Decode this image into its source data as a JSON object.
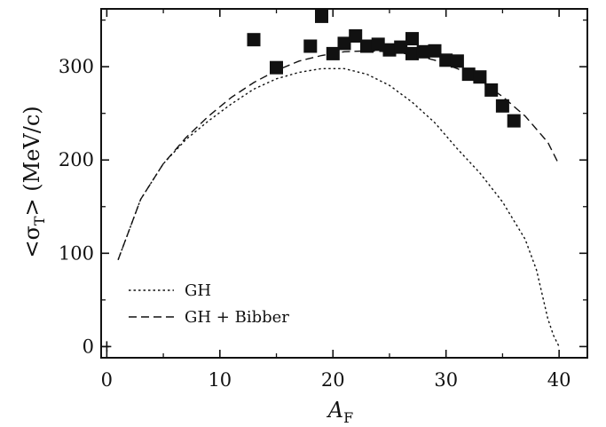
{
  "chart_data": {
    "type": "scatter",
    "title": "",
    "xlabel": {
      "main": "A",
      "sub": "F"
    },
    "ylabel": {
      "pre": "<σ",
      "sub": "T",
      "post": "> (MeV/c)"
    },
    "xlim": [
      -0.5,
      42.5
    ],
    "ylim": [
      -12,
      362
    ],
    "xticks": [
      0,
      10,
      20,
      30,
      40
    ],
    "yticks": [
      0,
      100,
      200,
      300
    ],
    "grid": false,
    "legend_position": "bottom-left",
    "legend": [
      {
        "label": "GH",
        "style": "dotted"
      },
      {
        "label": "GH + Bibber",
        "style": "dashed"
      }
    ],
    "series": [
      {
        "name": "GH",
        "kind": "line",
        "style": "dotted",
        "x": [
          1,
          3,
          5,
          7,
          9,
          11,
          13,
          15,
          17,
          19,
          20,
          21,
          23,
          25,
          27,
          29,
          31,
          33,
          35,
          37,
          38,
          39,
          39.5,
          40
        ],
        "y": [
          93,
          158,
          196,
          222,
          242,
          260,
          276,
          287,
          294,
          298,
          298,
          298,
          292,
          280,
          262,
          240,
          212,
          186,
          155,
          115,
          82,
          30,
          12,
          0
        ]
      },
      {
        "name": "GH + Bibber",
        "kind": "line",
        "style": "dashed",
        "x": [
          1,
          3,
          5,
          7,
          9,
          11,
          13,
          15,
          17,
          19,
          21,
          23,
          25,
          27,
          29,
          31,
          33,
          35,
          37,
          39,
          40
        ],
        "y": [
          93,
          158,
          196,
          224,
          247,
          267,
          283,
          296,
          306,
          312,
          316,
          317,
          316,
          313,
          307,
          298,
          285,
          268,
          247,
          219,
          195
        ]
      },
      {
        "kind": "scatter",
        "marker": "square",
        "x": [
          13,
          15,
          18,
          19,
          20,
          21,
          22,
          23,
          24,
          25,
          26,
          27,
          27,
          28,
          29,
          30,
          31,
          32,
          33,
          34,
          35,
          36
        ],
        "y": [
          329,
          299,
          322,
          354,
          314,
          325,
          333,
          322,
          324,
          318,
          321,
          330,
          314,
          316,
          317,
          307,
          306,
          292,
          289,
          275,
          258,
          242
        ]
      }
    ]
  }
}
